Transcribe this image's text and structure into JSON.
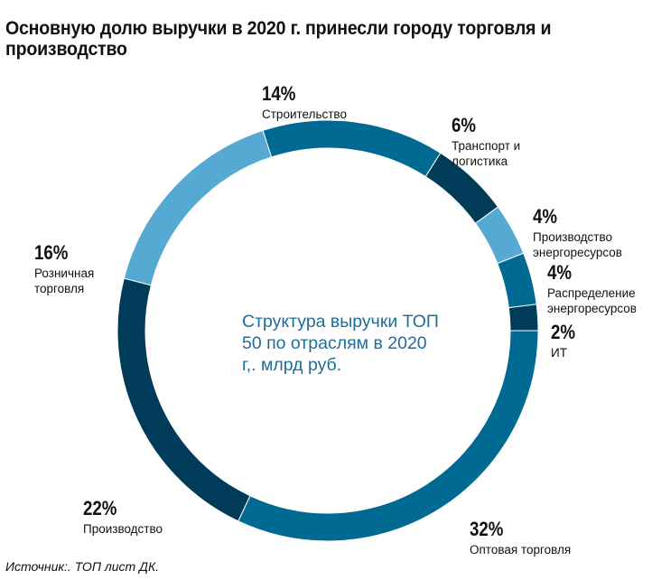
{
  "title": "Основную долю выручки в 2020 г. принесли городу торговля и производство",
  "chart_data": {
    "type": "pie",
    "variant": "donut",
    "center_text": "Структура выручки ТОП 50 по отраслям в 2020 г,. млрд руб.",
    "slices": [
      {
        "label": "Строительство",
        "value": 14,
        "display": "14%",
        "color": "#006a93"
      },
      {
        "label": "Транспорт и\nлогистика",
        "value": 6,
        "display": "6%",
        "color": "#003c5a"
      },
      {
        "label": "Производство\nэнергоресурсов",
        "value": 4,
        "display": "4%",
        "color": "#55a9d2"
      },
      {
        "label": "Распределение\nэнергоресурсов",
        "value": 4,
        "display": "4%",
        "color": "#006a93"
      },
      {
        "label": "ИТ",
        "value": 2,
        "display": "2%",
        "color": "#003c5a"
      },
      {
        "label": "Оптовая торговля",
        "value": 32,
        "display": "32%",
        "color": "#006a93"
      },
      {
        "label": "Производство",
        "value": 22,
        "display": "22%",
        "color": "#003c5a"
      },
      {
        "label": "Розничная\nторговля",
        "value": 16,
        "display": "16%",
        "color": "#55a9d2"
      }
    ]
  },
  "source": "Источник:. ТОП лист ДК."
}
